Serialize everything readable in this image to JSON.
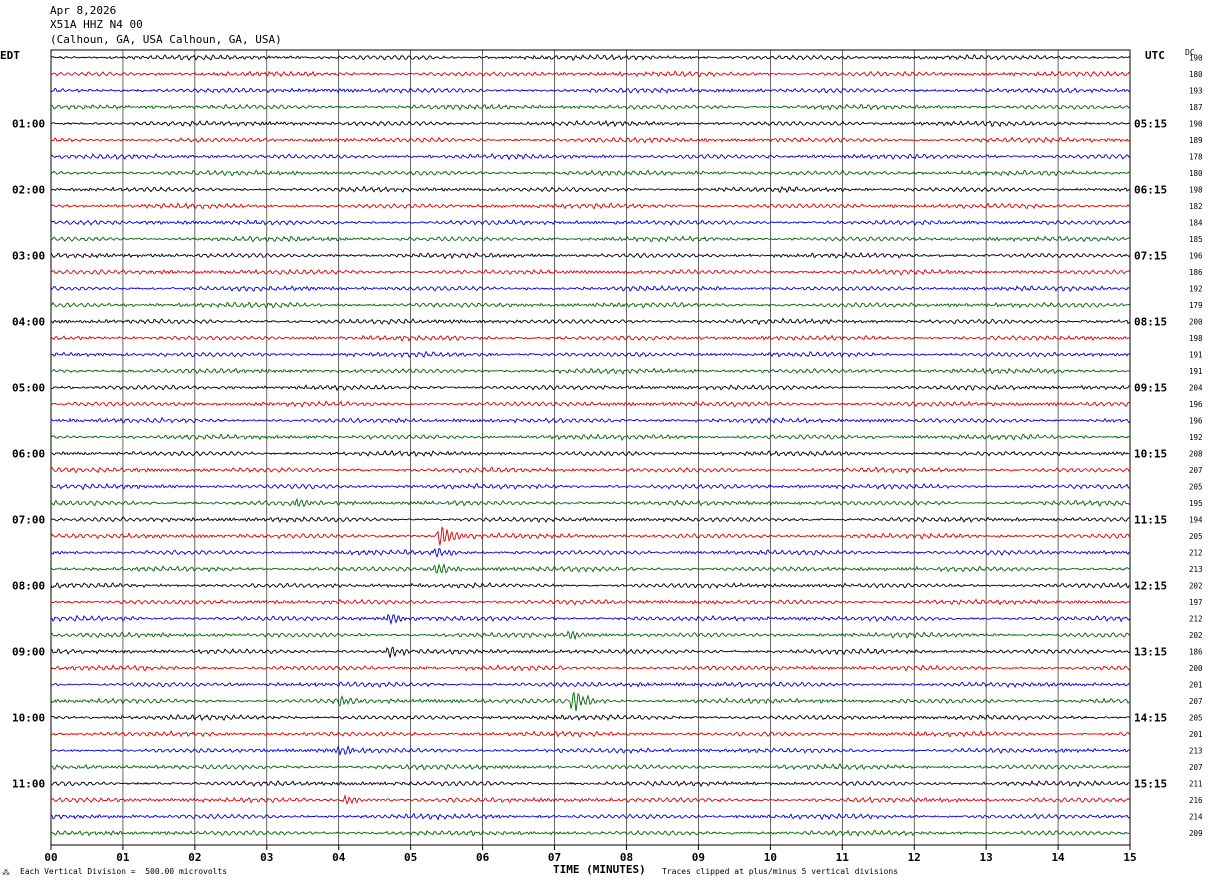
{
  "header": {
    "date": "Apr 8,2026",
    "station": "X51A HHZ N4 00",
    "location": "(Calhoun, GA, USA Calhoun, GA, USA)"
  },
  "left_corner": "EDT",
  "right_corner": "UTC",
  "dc_header": "DC",
  "footer": {
    "scale": "Each Vertical Division =  500.00 microvolts",
    "xlabel": "TIME (MINUTES)",
    "clip_note": "Traces clipped at plus/minus 5 vertical divisions",
    "corner_mark": "⁂"
  },
  "chart_data": {
    "type": "line",
    "xlabel": "TIME (MINUTES)",
    "x_ticks": [
      "00",
      "01",
      "02",
      "03",
      "04",
      "05",
      "06",
      "07",
      "08",
      "09",
      "10",
      "11",
      "12",
      "13",
      "14",
      "15"
    ],
    "xlim": [
      0,
      15
    ],
    "traces_per_hour": 4,
    "trace_colors": [
      "#000000",
      "#dd0000",
      "#0000dd",
      "#006600"
    ],
    "left_hour_labels": [
      "01:00",
      "02:00",
      "03:00",
      "04:00",
      "05:00",
      "06:00",
      "07:00",
      "08:00",
      "09:00",
      "10:00",
      "11:00"
    ],
    "right_hour_labels": [
      "05:15",
      "06:15",
      "07:15",
      "08:15",
      "09:15",
      "10:15",
      "11:15",
      "12:15",
      "13:15",
      "14:15",
      "15:15"
    ],
    "dc_offsets": [
      190,
      180,
      193,
      187,
      190,
      189,
      178,
      180,
      198,
      182,
      184,
      185,
      196,
      186,
      192,
      179,
      200,
      198,
      191,
      191,
      204,
      196,
      196,
      192,
      208,
      207,
      205,
      195,
      194,
      205,
      212,
      213,
      202,
      197,
      212,
      202,
      186,
      200,
      201,
      207,
      205,
      201,
      213,
      207,
      211,
      216,
      214,
      209
    ],
    "events": [
      {
        "trace": 27,
        "minute": 3.4,
        "amplitude": 1.8
      },
      {
        "trace": 29,
        "minute": 5.4,
        "amplitude": 4.0
      },
      {
        "trace": 30,
        "minute": 5.35,
        "amplitude": 1.8
      },
      {
        "trace": 31,
        "minute": 5.35,
        "amplitude": 2.2
      },
      {
        "trace": 34,
        "minute": 4.7,
        "amplitude": 2.0
      },
      {
        "trace": 35,
        "minute": 7.2,
        "amplitude": 1.6
      },
      {
        "trace": 36,
        "minute": 4.7,
        "amplitude": 2.2
      },
      {
        "trace": 39,
        "minute": 7.25,
        "amplitude": 4.0
      },
      {
        "trace": 39,
        "minute": 4.0,
        "amplitude": 1.6
      },
      {
        "trace": 42,
        "minute": 4.0,
        "amplitude": 1.8
      },
      {
        "trace": 45,
        "minute": 4.1,
        "amplitude": 1.6
      }
    ]
  }
}
